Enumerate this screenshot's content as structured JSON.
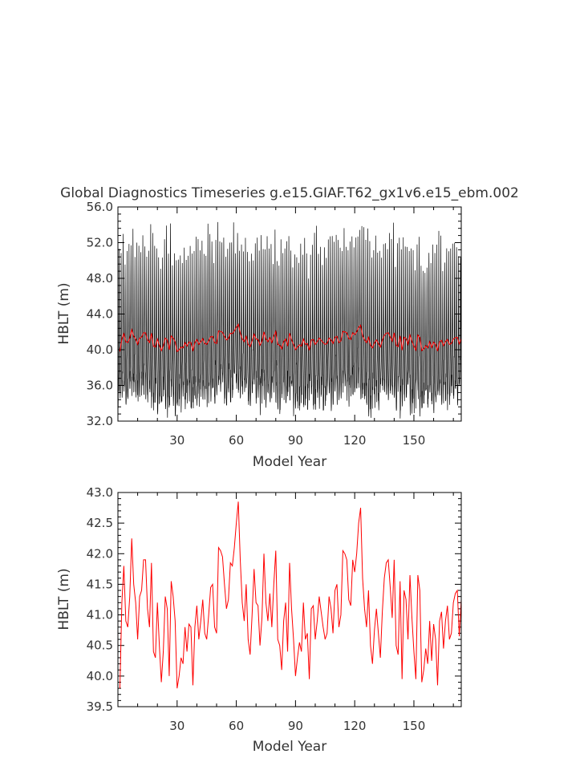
{
  "chart_data": [
    {
      "type": "line",
      "title": "Global Diagnostics Timeseries g.e15.GIAF.T62_gx1v6.e15_ebm.002",
      "xlabel": "Model Year",
      "ylabel": "HBLT (m)",
      "xlim": [
        0,
        174
      ],
      "ylim": [
        32.0,
        56.0
      ],
      "xticks": [
        30,
        60,
        90,
        120,
        150
      ],
      "xtick_labels": [
        "30",
        "60",
        "90",
        "120",
        "150"
      ],
      "yticks": [
        32.0,
        36.0,
        40.0,
        44.0,
        48.0,
        52.0,
        56.0
      ],
      "ytick_labels": [
        "32.0",
        "36.0",
        "40.0",
        "44.0",
        "48.0",
        "52.0",
        "56.0"
      ],
      "series": [
        {
          "color": "#000000",
          "style": "monthly",
          "description_values": "monthly mean HBLT: annual cycle with peaks approx 50-54 m and troughs approx 33-37 m over years 1-174"
        },
        {
          "color": "#ff0000",
          "style": "annual",
          "ref": "annual_means"
        }
      ]
    },
    {
      "type": "line",
      "title": "",
      "xlabel": "Model Year",
      "ylabel": "HBLT (m)",
      "xlim": [
        0,
        174
      ],
      "ylim": [
        39.5,
        43.0
      ],
      "xticks": [
        30,
        60,
        90,
        120,
        150
      ],
      "xtick_labels": [
        "30",
        "60",
        "90",
        "120",
        "150"
      ],
      "yticks": [
        39.5,
        40.0,
        40.5,
        41.0,
        41.5,
        42.0,
        42.5,
        43.0
      ],
      "ytick_labels": [
        "39.5",
        "40.0",
        "40.5",
        "41.0",
        "41.5",
        "42.0",
        "42.5",
        "43.0"
      ],
      "series": [
        {
          "color": "#ff0000",
          "ref": "annual_means"
        }
      ]
    }
  ],
  "annual_means": [
    39.8,
    41.2,
    41.8,
    40.9,
    40.8,
    41.3,
    42.25,
    41.5,
    41.2,
    40.6,
    41.3,
    41.4,
    41.9,
    41.9,
    41.1,
    40.8,
    41.85,
    40.4,
    40.3,
    41.2,
    40.5,
    39.9,
    40.4,
    41.3,
    41.1,
    40.0,
    41.55,
    41.3,
    40.9,
    39.8,
    40.0,
    40.3,
    40.2,
    40.8,
    40.4,
    40.85,
    40.8,
    39.85,
    40.8,
    41.15,
    40.6,
    40.9,
    41.25,
    40.7,
    40.6,
    41.0,
    41.45,
    41.5,
    40.8,
    40.7,
    42.1,
    42.05,
    41.95,
    41.5,
    41.1,
    41.25,
    41.85,
    41.8,
    42.1,
    42.5,
    42.85,
    41.9,
    41.2,
    40.9,
    41.5,
    40.6,
    40.35,
    41.0,
    41.75,
    41.2,
    41.15,
    40.5,
    40.95,
    42.0,
    41.2,
    40.9,
    41.35,
    40.8,
    41.5,
    42.05,
    40.6,
    40.5,
    40.1,
    40.9,
    41.2,
    40.4,
    41.85,
    41.1,
    40.6,
    40.0,
    40.3,
    40.55,
    40.4,
    41.2,
    40.6,
    40.7,
    39.95,
    41.1,
    41.15,
    40.6,
    40.9,
    41.3,
    41.05,
    40.8,
    40.6,
    40.7,
    41.3,
    41.1,
    40.7,
    41.4,
    41.5,
    40.8,
    41.0,
    42.05,
    42.0,
    41.9,
    41.25,
    41.15,
    41.9,
    41.7,
    42.0,
    42.5,
    42.75,
    41.6,
    41.1,
    40.8,
    41.4,
    40.5,
    40.2,
    40.75,
    41.1,
    40.7,
    40.3,
    41.05,
    41.6,
    41.85,
    41.9,
    41.45,
    40.95,
    41.9,
    40.5,
    40.35,
    41.55,
    39.95,
    41.4,
    41.25,
    40.6,
    41.65,
    40.95,
    40.4,
    39.95,
    41.65,
    41.4,
    39.9,
    40.1,
    40.45,
    40.2,
    40.9,
    40.25,
    40.85,
    40.6,
    39.85,
    40.9,
    41.05,
    40.45,
    40.9,
    41.15,
    40.6,
    40.7,
    41.2,
    41.35,
    41.4,
    40.65,
    41.25
  ]
}
